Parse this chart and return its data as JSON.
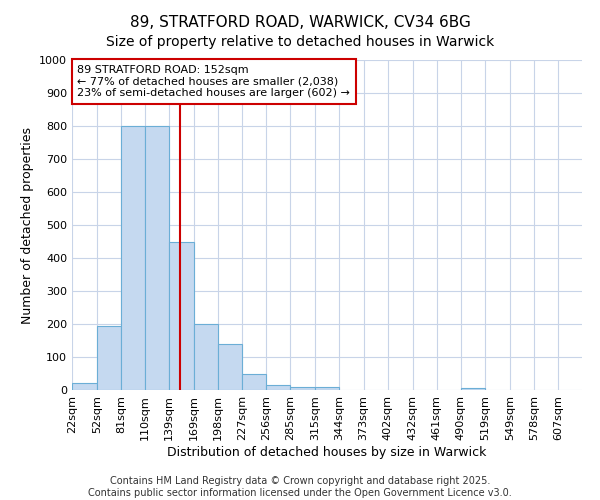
{
  "title_line1": "89, STRATFORD ROAD, WARWICK, CV34 6BG",
  "title_line2": "Size of property relative to detached houses in Warwick",
  "xlabel": "Distribution of detached houses by size in Warwick",
  "ylabel": "Number of detached properties",
  "annotation_line1": "89 STRATFORD ROAD: 152sqm",
  "annotation_line2": "← 77% of detached houses are smaller (2,038)",
  "annotation_line3": "23% of semi-detached houses are larger (602) →",
  "footer_line1": "Contains HM Land Registry data © Crown copyright and database right 2025.",
  "footer_line2": "Contains public sector information licensed under the Open Government Licence v3.0.",
  "bin_labels": [
    "22sqm",
    "52sqm",
    "81sqm",
    "110sqm",
    "139sqm",
    "169sqm",
    "198sqm",
    "227sqm",
    "256sqm",
    "285sqm",
    "315sqm",
    "344sqm",
    "373sqm",
    "402sqm",
    "432sqm",
    "461sqm",
    "490sqm",
    "519sqm",
    "549sqm",
    "578sqm",
    "607sqm"
  ],
  "bin_starts": [
    22,
    52,
    81,
    110,
    139,
    169,
    198,
    227,
    256,
    285,
    315,
    344,
    373,
    402,
    432,
    461,
    490,
    519,
    549,
    578,
    607
  ],
  "bar_values": [
    20,
    195,
    800,
    800,
    450,
    200,
    140,
    50,
    15,
    10,
    10,
    0,
    0,
    0,
    0,
    0,
    5,
    0,
    0,
    0,
    0
  ],
  "bar_color": "#c5d9f0",
  "bar_edge_color": "#6baed6",
  "grid_color": "#c8d4e8",
  "property_line_x": 152,
  "property_line_color": "#cc0000",
  "ylim": [
    0,
    1000
  ],
  "yticks": [
    0,
    100,
    200,
    300,
    400,
    500,
    600,
    700,
    800,
    900,
    1000
  ],
  "background_color": "#ffffff",
  "plot_bg_color": "#ffffff",
  "annotation_box_color": "#ffffff",
  "annotation_box_edge": "#cc0000",
  "title_fontsize": 11,
  "subtitle_fontsize": 10,
  "axis_label_fontsize": 9,
  "tick_fontsize": 8,
  "annotation_fontsize": 8,
  "footer_fontsize": 7
}
